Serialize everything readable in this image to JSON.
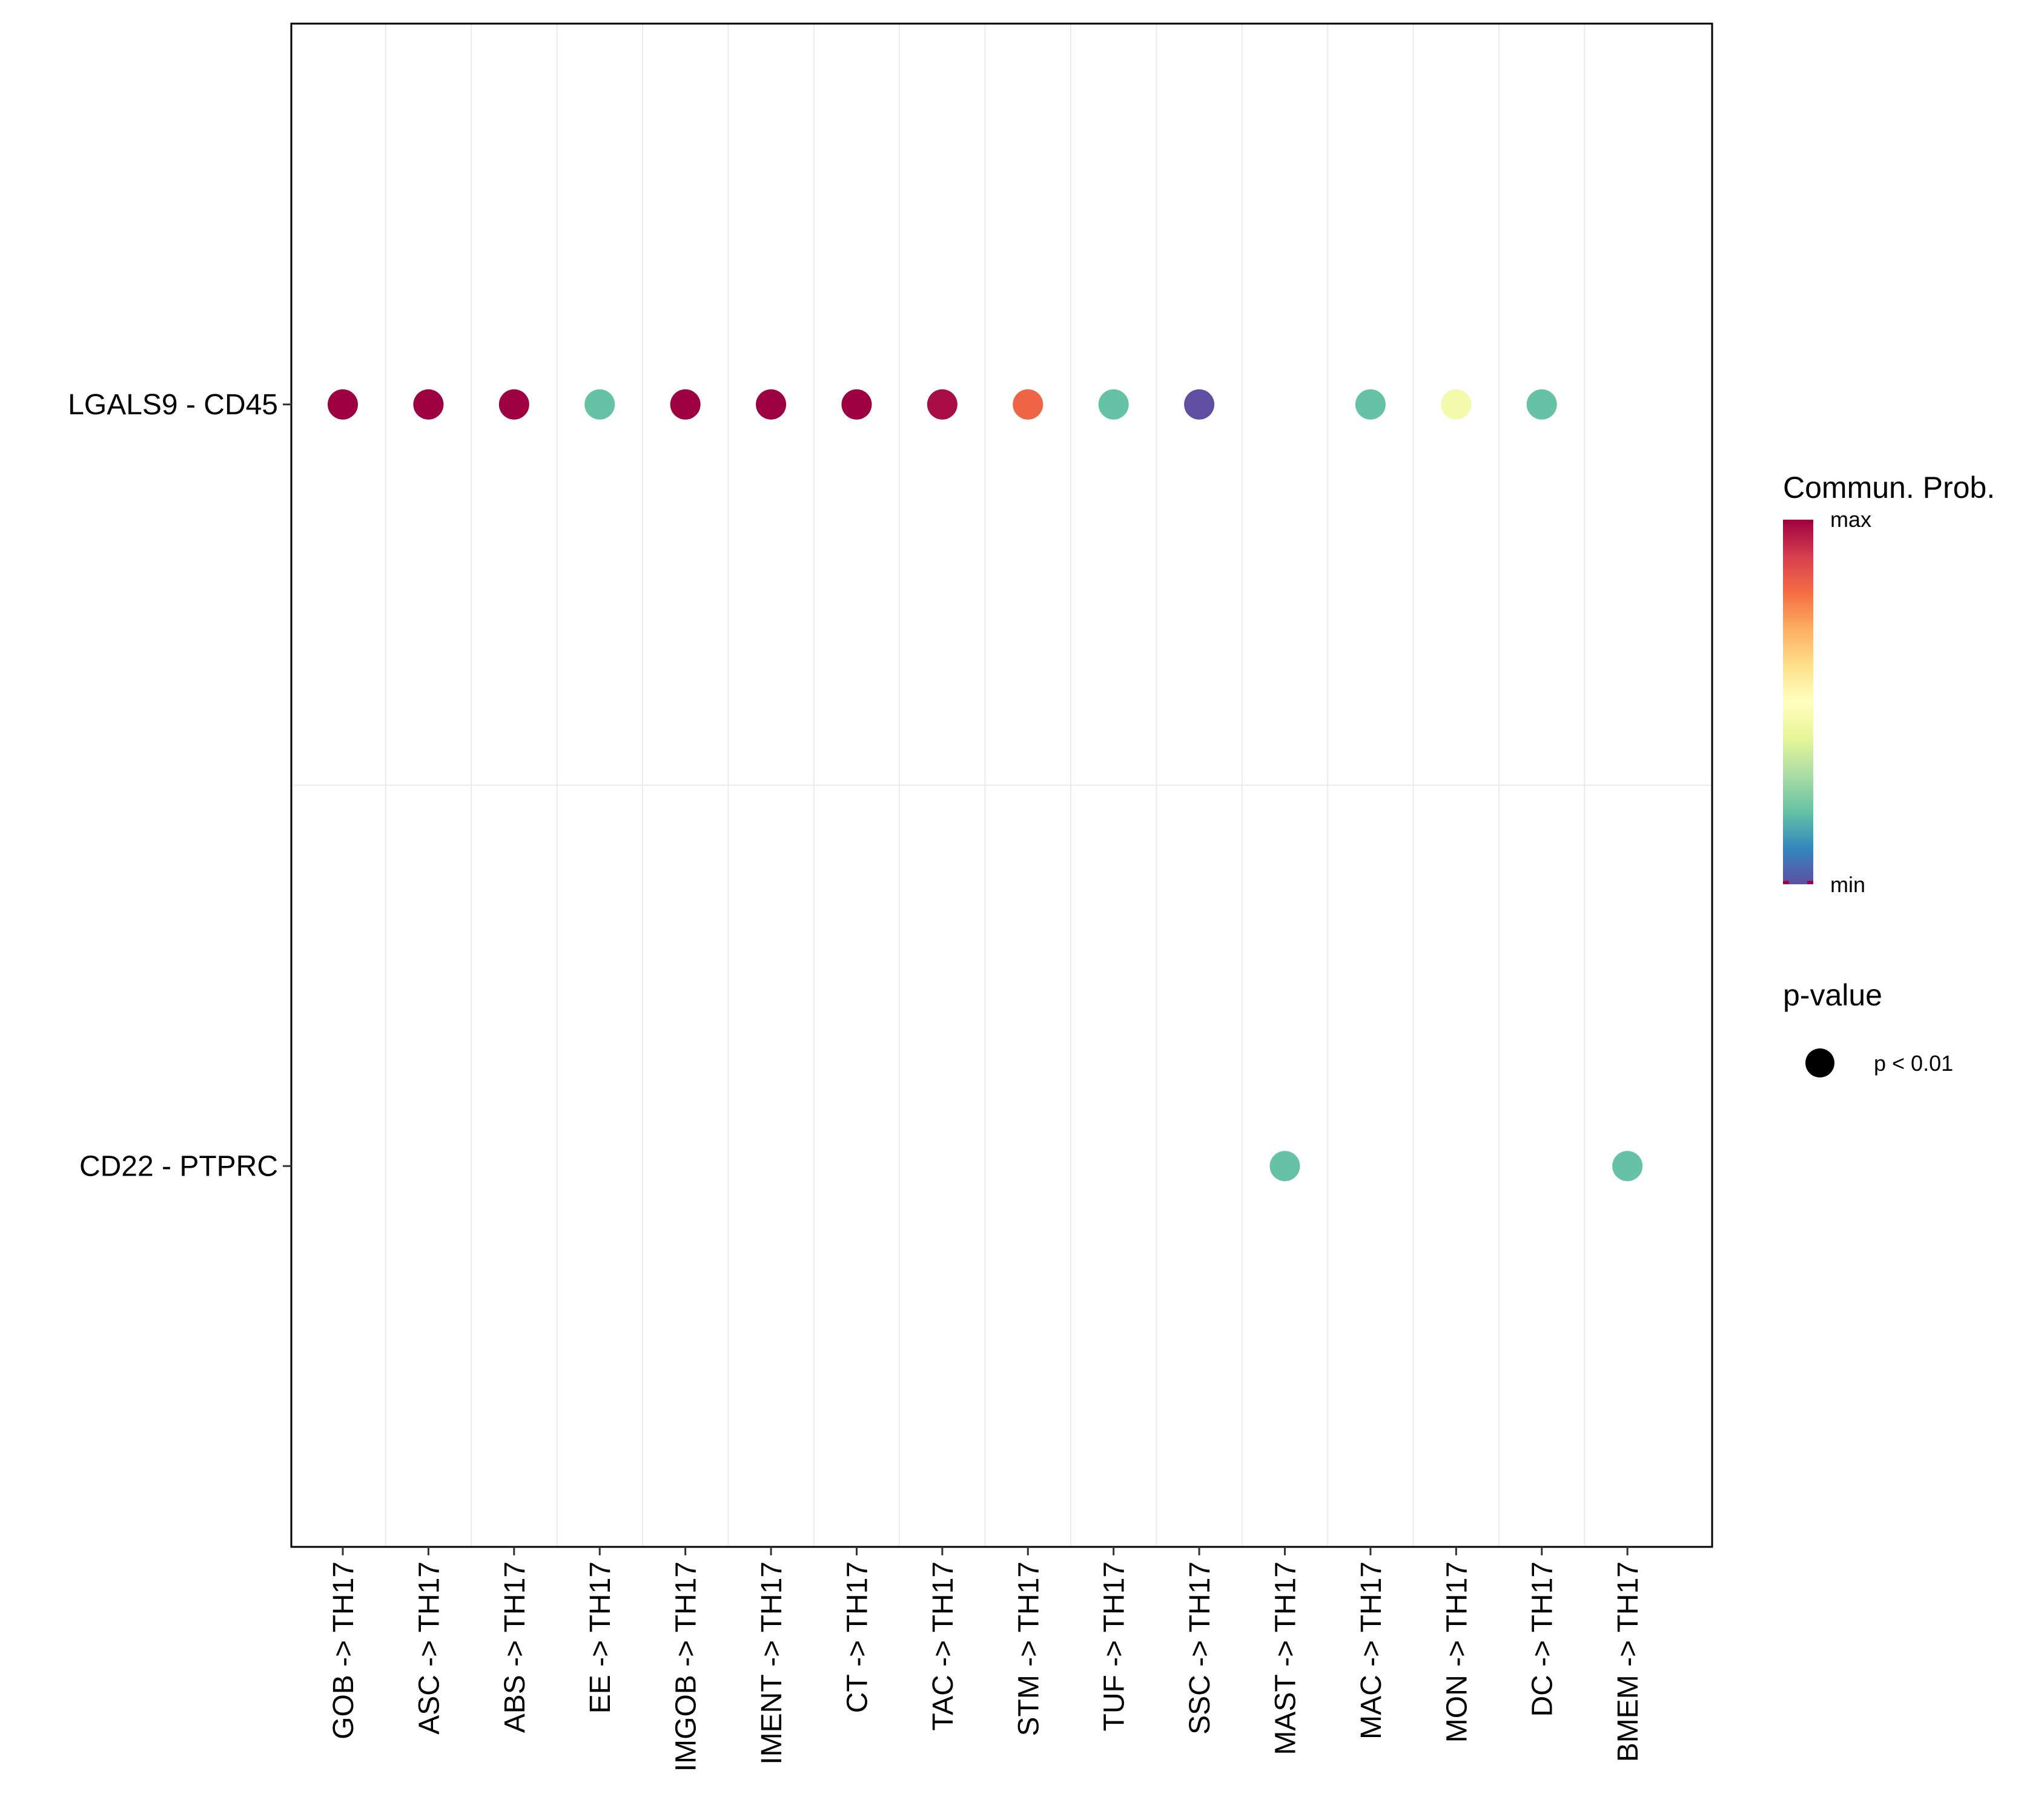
{
  "chart_data": {
    "type": "dot",
    "title": "",
    "xlabel": "",
    "ylabel": "",
    "categories": [
      "GOB -> TH17",
      "ASC -> TH17",
      "ABS -> TH17",
      "EE -> TH17",
      "IMGOB -> TH17",
      "IMENT -> TH17",
      "CT -> TH17",
      "TAC -> TH17",
      "STM -> TH17",
      "TUF -> TH17",
      "SSC -> TH17",
      "MAST -> TH17",
      "MAC -> TH17",
      "MON -> TH17",
      "DC -> TH17",
      "BMEM -> TH17"
    ],
    "rows": [
      "LGALS9 - CD45",
      "CD22 - PTPRC"
    ],
    "points": [
      {
        "row": "LGALS9 - CD45",
        "category": "GOB -> TH17",
        "prob": 1.0
      },
      {
        "row": "LGALS9 - CD45",
        "category": "ASC -> TH17",
        "prob": 1.0
      },
      {
        "row": "LGALS9 - CD45",
        "category": "ABS -> TH17",
        "prob": 1.0
      },
      {
        "row": "LGALS9 - CD45",
        "category": "EE -> TH17",
        "prob": 0.2
      },
      {
        "row": "LGALS9 - CD45",
        "category": "IMGOB -> TH17",
        "prob": 1.0
      },
      {
        "row": "LGALS9 - CD45",
        "category": "IMENT -> TH17",
        "prob": 1.0
      },
      {
        "row": "LGALS9 - CD45",
        "category": "CT -> TH17",
        "prob": 1.0
      },
      {
        "row": "LGALS9 - CD45",
        "category": "TAC -> TH17",
        "prob": 0.98
      },
      {
        "row": "LGALS9 - CD45",
        "category": "STM -> TH17",
        "prob": 0.82
      },
      {
        "row": "LGALS9 - CD45",
        "category": "TUF -> TH17",
        "prob": 0.2
      },
      {
        "row": "LGALS9 - CD45",
        "category": "SSC -> TH17",
        "prob": 0.0
      },
      {
        "row": "LGALS9 - CD45",
        "category": "MAC -> TH17",
        "prob": 0.2
      },
      {
        "row": "LGALS9 - CD45",
        "category": "MON -> TH17",
        "prob": 0.45
      },
      {
        "row": "LGALS9 - CD45",
        "category": "DC -> TH17",
        "prob": 0.2
      },
      {
        "row": "CD22 - PTPRC",
        "category": "MAST -> TH17",
        "prob": 0.2
      },
      {
        "row": "CD22 - PTPRC",
        "category": "BMEM -> TH17",
        "prob": 0.2
      }
    ],
    "color_scale": {
      "name": "Spectral",
      "stops": [
        "#5E4FA2",
        "#3288BD",
        "#66C2A5",
        "#ABDDA4",
        "#E6F598",
        "#FFFFBF",
        "#FEE08B",
        "#FDAE61",
        "#F46D43",
        "#D53E4F",
        "#9E0142"
      ]
    },
    "legend": {
      "color_title": "Commun. Prob.",
      "max_label": "max",
      "min_label": "min",
      "size_title": "p-value",
      "size_label": "p < 0.01"
    },
    "grid": true
  }
}
